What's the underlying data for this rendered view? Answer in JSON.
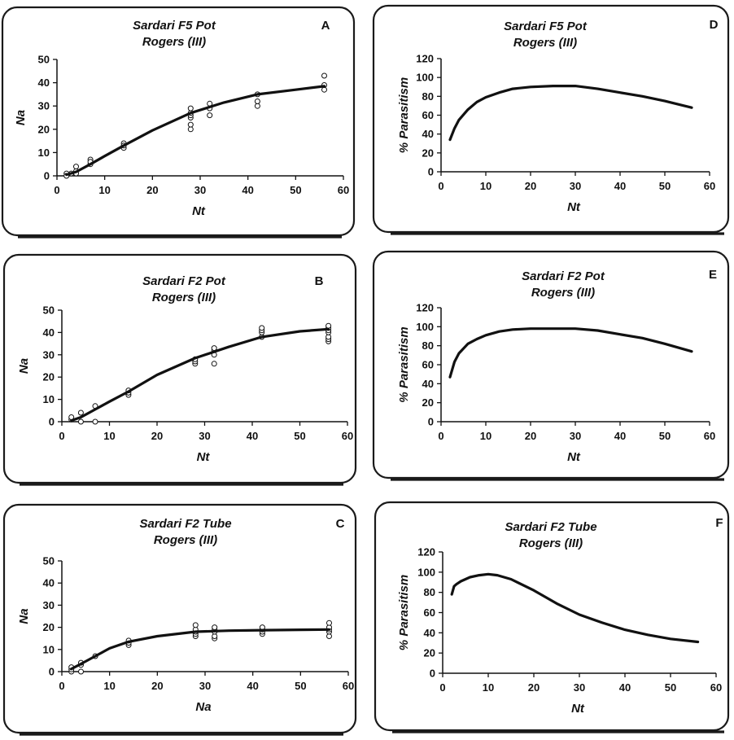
{
  "chart_data": [
    {
      "id": "A",
      "letter": "A",
      "type": "scatter",
      "title": [
        "Sardari F5 Pot",
        "Rogers  (III)"
      ],
      "xlabel": "Nt",
      "ylabel": "Na",
      "xlim": [
        0,
        60
      ],
      "ylim": [
        0,
        50
      ],
      "xticks": [
        0,
        10,
        20,
        30,
        40,
        50,
        60
      ],
      "yticks": [
        0,
        10,
        20,
        30,
        40,
        50
      ],
      "series": [
        {
          "kind": "points",
          "x": [
            2,
            2,
            3,
            4,
            4,
            4,
            7,
            7,
            7,
            14,
            14,
            14,
            28,
            28,
            28,
            28,
            28,
            28,
            32,
            32,
            32,
            42,
            42,
            42,
            56,
            56,
            56
          ],
          "y": [
            1,
            0,
            1,
            2,
            4,
            1,
            5,
            7,
            6,
            12,
            14,
            13,
            20,
            22,
            25,
            26,
            27,
            29,
            26,
            29,
            31,
            30,
            32,
            35,
            37,
            39,
            43
          ]
        },
        {
          "kind": "line",
          "x": [
            2,
            4,
            7,
            10,
            14,
            20,
            28,
            35,
            42,
            50,
            56
          ],
          "y": [
            0.5,
            1.7,
            5,
            8.5,
            13,
            19.5,
            27,
            31.5,
            35,
            37,
            38.5
          ]
        }
      ]
    },
    {
      "id": "B",
      "letter": "B",
      "type": "scatter",
      "title": [
        "Sardari F2 Pot",
        "Rogers  (III)"
      ],
      "xlabel": "Nt",
      "ylabel": "Na",
      "xlim": [
        0,
        60
      ],
      "ylim": [
        0,
        50
      ],
      "xticks": [
        0,
        10,
        20,
        30,
        40,
        50,
        60
      ],
      "yticks": [
        0,
        10,
        20,
        30,
        40,
        50
      ],
      "series": [
        {
          "kind": "points",
          "x": [
            2,
            2,
            4,
            4,
            7,
            7,
            14,
            14,
            14,
            28,
            28,
            28,
            32,
            32,
            32,
            32,
            42,
            42,
            42,
            42,
            56,
            56,
            56,
            56,
            56,
            56,
            56
          ],
          "y": [
            1,
            2,
            0,
            4,
            0,
            7,
            12,
            13,
            14,
            26,
            27,
            28,
            26,
            30,
            32,
            33,
            38,
            40,
            41,
            42,
            36,
            37,
            38,
            40,
            41,
            42,
            43
          ]
        },
        {
          "kind": "line",
          "x": [
            2,
            4,
            7,
            10,
            14,
            20,
            28,
            35,
            42,
            50,
            56
          ],
          "y": [
            0.5,
            2,
            5.5,
            9,
            13.5,
            21,
            28.5,
            33.5,
            38,
            40.5,
            41.5
          ]
        }
      ]
    },
    {
      "id": "C",
      "letter": "C",
      "type": "scatter",
      "title": [
        "Sardari F2 Tube",
        "Rogers  (III)"
      ],
      "xlabel": "Na",
      "ylabel": "Na",
      "xlim": [
        0,
        60
      ],
      "ylim": [
        0,
        50
      ],
      "xticks": [
        0,
        10,
        20,
        30,
        40,
        50,
        60
      ],
      "yticks": [
        0,
        10,
        20,
        30,
        40,
        50
      ],
      "series": [
        {
          "kind": "points",
          "x": [
            2,
            2,
            2,
            4,
            4,
            4,
            7,
            14,
            14,
            14,
            28,
            28,
            28,
            28,
            28,
            32,
            32,
            32,
            32,
            32,
            42,
            42,
            42,
            42,
            56,
            56,
            56,
            56,
            56
          ],
          "y": [
            0,
            1,
            2,
            0,
            3,
            4,
            7,
            12,
            13,
            14,
            16,
            17,
            18,
            19,
            21,
            15,
            16,
            18,
            19,
            20,
            17,
            18,
            19,
            20,
            16,
            18,
            19,
            20,
            22
          ]
        },
        {
          "kind": "line",
          "x": [
            2,
            4,
            7,
            10,
            14,
            20,
            28,
            35,
            42,
            50,
            56
          ],
          "y": [
            1.2,
            3.5,
            7,
            10.5,
            13.5,
            16,
            18,
            18.5,
            18.7,
            18.9,
            19
          ]
        }
      ]
    },
    {
      "id": "D",
      "letter": "D",
      "type": "line",
      "title": [
        "Sardari F5 Pot",
        "Rogers  (III)"
      ],
      "xlabel": "Nt",
      "ylabel": "% Parasitism",
      "xlim": [
        0,
        60
      ],
      "ylim": [
        0,
        120
      ],
      "xticks": [
        0,
        10,
        20,
        30,
        40,
        50,
        60
      ],
      "yticks": [
        0,
        20,
        40,
        60,
        80,
        100,
        120
      ],
      "series": [
        {
          "kind": "line",
          "x": [
            2,
            3,
            4,
            6,
            8,
            10,
            13,
            16,
            20,
            25,
            30,
            35,
            40,
            45,
            50,
            56
          ],
          "y": [
            34,
            46,
            55,
            66,
            74,
            79,
            84,
            88,
            90,
            91,
            91,
            88,
            84,
            80,
            75,
            68
          ]
        }
      ]
    },
    {
      "id": "E",
      "letter": "E",
      "type": "line",
      "title": [
        "Sardari F2 Pot",
        "Rogers  (III)"
      ],
      "xlabel": "Nt",
      "ylabel": "% Parasitism",
      "xlim": [
        0,
        60
      ],
      "ylim": [
        0,
        120
      ],
      "xticks": [
        0,
        10,
        20,
        30,
        40,
        50,
        60
      ],
      "yticks": [
        0,
        20,
        40,
        60,
        80,
        100,
        120
      ],
      "series": [
        {
          "kind": "line",
          "x": [
            2,
            3,
            4,
            6,
            8,
            10,
            13,
            16,
            20,
            25,
            30,
            35,
            40,
            45,
            50,
            56
          ],
          "y": [
            47,
            63,
            72,
            82,
            87,
            91,
            95,
            97,
            98,
            98,
            98,
            96,
            92,
            88,
            82,
            74
          ]
        }
      ]
    },
    {
      "id": "F",
      "letter": "F",
      "type": "line",
      "title": [
        "Sardari F2 Tube",
        "Rogers  (III)"
      ],
      "xlabel": "Nt",
      "ylabel": "% Parasitism",
      "xlim": [
        0,
        60
      ],
      "ylim": [
        0,
        120
      ],
      "xticks": [
        0,
        10,
        20,
        30,
        40,
        50,
        60
      ],
      "yticks": [
        0,
        20,
        40,
        60,
        80,
        100,
        120
      ],
      "series": [
        {
          "kind": "line",
          "x": [
            2,
            2.5,
            3,
            4,
            5,
            6,
            8,
            10,
            12,
            15,
            20,
            25,
            30,
            35,
            40,
            45,
            50,
            56
          ],
          "y": [
            78,
            86,
            88,
            91,
            93,
            95,
            97,
            98,
            97,
            93,
            82,
            69,
            58,
            50,
            43,
            38,
            34,
            31
          ]
        }
      ]
    }
  ]
}
